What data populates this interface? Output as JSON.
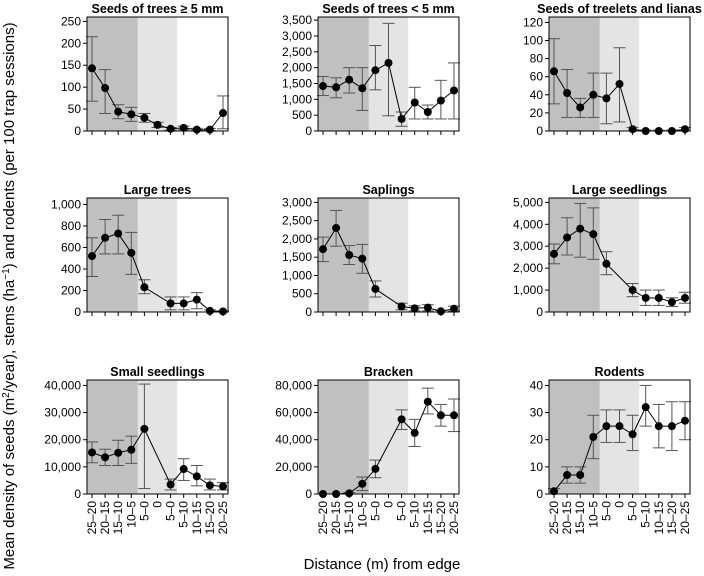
{
  "figure": {
    "ylabel_pre": "Mean density of seeds (m",
    "ylabel_sup1": "2",
    "ylabel_mid": "/year), stems (ha",
    "ylabel_sup2": "−1",
    "ylabel_post": ") and rodents (per 100 trap sessions)",
    "xlabel": "Distance (m) from edge",
    "x_categories": [
      "25–20",
      "20–15",
      "15–10",
      "10–5",
      "5–0",
      "0",
      "5–0",
      "5–10",
      "10–15",
      "15–20",
      "20–25"
    ],
    "colors": {
      "zone_dark": "#c0c0c0",
      "zone_light": "#e4e4e4",
      "marker": "#000000"
    }
  },
  "chart_data": [
    {
      "type": "line",
      "title": "Seeds of trees  ≥ 5 mm",
      "values": [
        143,
        98,
        44,
        38,
        30,
        14,
        5,
        7,
        3,
        3,
        41
      ],
      "err_low": [
        68,
        40,
        28,
        22,
        20,
        8,
        2,
        3,
        1,
        1,
        5
      ],
      "err_high": [
        215,
        140,
        60,
        54,
        40,
        20,
        8,
        11,
        6,
        6,
        80
      ],
      "ylim": [
        0,
        260
      ],
      "yticks": [
        0,
        50,
        100,
        150,
        200,
        250
      ],
      "ytick_labels": [
        "0",
        "50",
        "100",
        "150",
        "200",
        "250"
      ]
    },
    {
      "type": "line",
      "title": "Seeds of trees < 5 mm",
      "values": [
        1420,
        1380,
        1620,
        1350,
        1920,
        2150,
        380,
        900,
        600,
        960,
        1280
      ],
      "err_low": [
        1120,
        1050,
        1200,
        650,
        1300,
        480,
        150,
        380,
        380,
        380,
        380
      ],
      "err_high": [
        1720,
        1680,
        2000,
        2000,
        2700,
        3400,
        600,
        1380,
        820,
        1600,
        2150
      ],
      "ylim": [
        0,
        3600
      ],
      "yticks": [
        0,
        500,
        1000,
        1500,
        2000,
        2500,
        3000,
        3500
      ],
      "ytick_labels": [
        "0",
        "500",
        "1,000",
        "1,500",
        "2,000",
        "2,500",
        "3,000",
        "3,500"
      ]
    },
    {
      "type": "line",
      "title": "Seeds of treelets and lianas",
      "values": [
        66,
        42,
        26,
        40,
        36,
        52,
        2,
        0,
        0,
        0,
        2
      ],
      "err_low": [
        30,
        15,
        15,
        15,
        8,
        10,
        0,
        0,
        0,
        0,
        0
      ],
      "err_high": [
        102,
        68,
        36,
        64,
        64,
        92,
        4,
        1,
        1,
        1,
        4
      ],
      "ylim": [
        0,
        126
      ],
      "yticks": [
        0,
        20,
        40,
        60,
        80,
        100,
        120
      ],
      "ytick_labels": [
        "0",
        "20",
        "40",
        "60",
        "80",
        "100",
        "120"
      ]
    },
    {
      "type": "line",
      "title": "Large trees",
      "values": [
        520,
        690,
        730,
        550,
        230,
        80,
        80,
        115,
        10,
        5
      ],
      "err_low": [
        330,
        540,
        540,
        350,
        170,
        20,
        20,
        30,
        0,
        0
      ],
      "err_high": [
        690,
        860,
        900,
        740,
        300,
        140,
        140,
        180,
        20,
        10
      ],
      "ylim": [
        0,
        1060
      ],
      "yticks": [
        0,
        200,
        400,
        600,
        800,
        1000
      ],
      "ytick_labels": [
        "0",
        "200",
        "400",
        "600",
        "800",
        "1,000"
      ]
    },
    {
      "type": "line",
      "title": "Saplings",
      "values": [
        1720,
        2300,
        1560,
        1460,
        630,
        150,
        100,
        120,
        20,
        90
      ],
      "err_low": [
        1380,
        1800,
        1300,
        1060,
        410,
        60,
        30,
        30,
        0,
        20
      ],
      "err_high": [
        2050,
        2780,
        1820,
        1850,
        850,
        240,
        170,
        200,
        40,
        160
      ],
      "ylim": [
        0,
        3120
      ],
      "yticks": [
        0,
        500,
        1000,
        1500,
        2000,
        2500,
        3000
      ],
      "ytick_labels": [
        "0",
        "500",
        "1,000",
        "1,500",
        "2,000",
        "2,500",
        "3,000"
      ]
    },
    {
      "type": "line",
      "title": "Large seedlings",
      "values": [
        2650,
        3400,
        3800,
        3550,
        2200,
        1000,
        640,
        640,
        450,
        640
      ],
      "err_low": [
        2200,
        2600,
        2500,
        2400,
        1700,
        700,
        300,
        300,
        250,
        400
      ],
      "err_high": [
        3100,
        4300,
        4950,
        4750,
        2750,
        1300,
        1000,
        1000,
        650,
        900
      ],
      "ylim": [
        0,
        5200
      ],
      "yticks": [
        0,
        1000,
        2000,
        3000,
        4000,
        5000
      ],
      "ytick_labels": [
        "0",
        "1,000",
        "2,000",
        "3,000",
        "4,000",
        "5,000"
      ]
    },
    {
      "type": "line",
      "title": "Small seedlings",
      "values": [
        15300,
        13500,
        15200,
        16300,
        24000,
        3500,
        9200,
        6500,
        3200,
        2800
      ],
      "err_low": [
        11500,
        10500,
        10500,
        11300,
        2000,
        1500,
        5000,
        3000,
        1500,
        1500
      ],
      "err_high": [
        19200,
        16500,
        19800,
        21300,
        40500,
        5500,
        13000,
        10500,
        5500,
        4200
      ],
      "ylim": [
        0,
        42000
      ],
      "yticks": [
        0,
        10000,
        20000,
        30000,
        40000
      ],
      "ytick_labels": [
        "0",
        "10,000",
        "20,000",
        "30,000",
        "40,000"
      ]
    },
    {
      "type": "line",
      "title": "Bracken",
      "values": [
        0,
        0,
        500,
        7500,
        18500,
        55000,
        45000,
        68000,
        58000,
        58000
      ],
      "err_low": [
        0,
        0,
        0,
        2500,
        12000,
        47500,
        35000,
        59000,
        50000,
        46000
      ],
      "err_high": [
        0,
        0,
        1000,
        12500,
        25000,
        62000,
        55000,
        78000,
        66000,
        70000
      ],
      "ylim": [
        0,
        84000
      ],
      "yticks": [
        0,
        20000,
        40000,
        60000,
        80000
      ],
      "ytick_labels": [
        "0",
        "20,000",
        "40,000",
        "60,000",
        "80,000"
      ]
    },
    {
      "type": "line",
      "title": "Rodents",
      "values": [
        1,
        7,
        7,
        21,
        25,
        25,
        22,
        32,
        25,
        25,
        27
      ],
      "err_low": [
        0,
        4,
        4,
        13,
        19,
        19,
        16,
        25,
        17,
        16,
        20
      ],
      "err_high": [
        2,
        10,
        10,
        29,
        31,
        31,
        29,
        40,
        33,
        34,
        34
      ],
      "ylim": [
        0,
        42
      ],
      "yticks": [
        0,
        10,
        20,
        30,
        40
      ],
      "ytick_labels": [
        "0",
        "10",
        "20",
        "30",
        "40"
      ]
    }
  ]
}
